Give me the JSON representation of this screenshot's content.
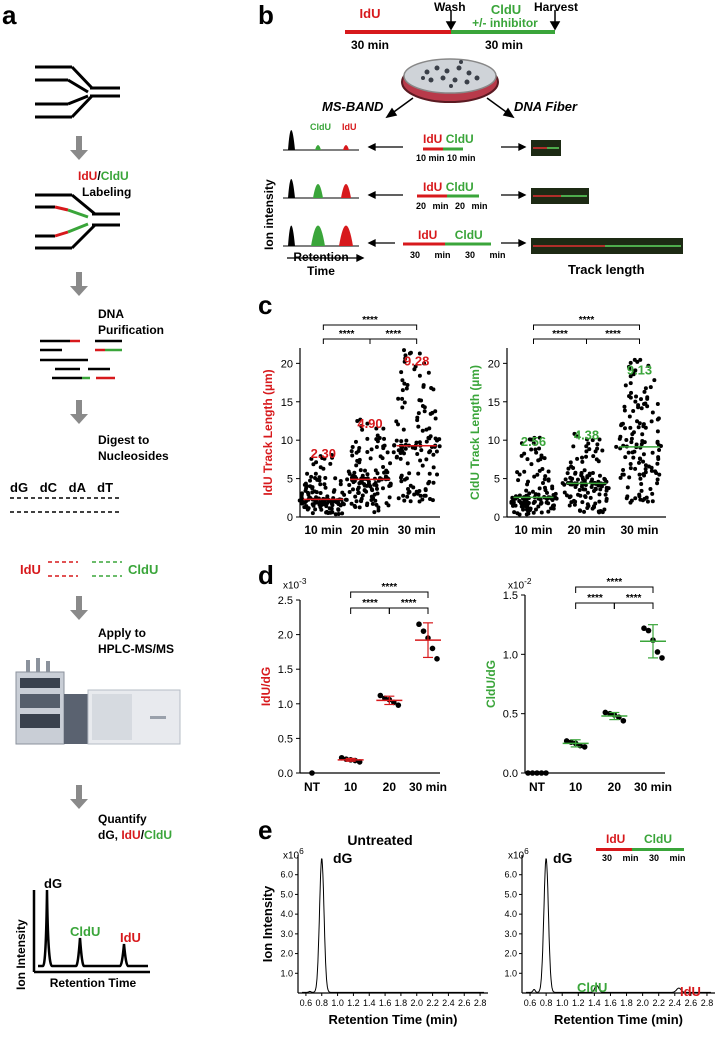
{
  "panels": {
    "a": "a",
    "b": "b",
    "c": "c",
    "d": "d",
    "e": "e"
  },
  "panel_a": {
    "step1_idu": "IdU",
    "step1_sep": "/",
    "step1_cldu": "CldU",
    "step1_rest": "Labeling",
    "step2_l1": "DNA",
    "step2_l2": "Purification",
    "step3_l1": "Digest to",
    "step3_l2": "Nucleosides",
    "nucleosides": [
      "dG",
      "dC",
      "dA",
      "dT"
    ],
    "idu_label": "IdU",
    "cldu_label": "CldU",
    "step4_l1": "Apply to",
    "step4_l2": "HPLC-MS/MS",
    "step5_l1": "Quantify",
    "step5_l2_a": "dG, ",
    "step5_l2_idu": "IdU",
    "step5_l2_sep": "/",
    "step5_l2_cldu": "CldU",
    "chrom_dg": "dG",
    "chrom_cldu": "CldU",
    "chrom_idu": "IdU",
    "chrom_ylabel": "Ion Intensity",
    "chrom_xlabel": "Retention Time"
  },
  "panel_b": {
    "idu": "IdU",
    "wash": "Wash",
    "cldu": "CldU",
    "inhibitor": "+/- inhibitor",
    "harvest": "Harvest",
    "t1": "30 min",
    "t2": "30 min",
    "msband": "MS-BAND",
    "fiber": "DNA Fiber",
    "ylabel": "Ion intensity",
    "xlabel_l1": "Retention",
    "xlabel_l2": "Time",
    "peak_cldu": "CldU",
    "peak_idu": "IdU",
    "rows": [
      {
        "idu": "IdU",
        "cldu": "CldU",
        "t1": "10 min",
        "t2": "10 min"
      },
      {
        "idu": "IdU",
        "cldu": "CldU",
        "t1": "20 min",
        "t2": "20 min"
      },
      {
        "idu": "IdU",
        "cldu": "CldU",
        "t1": "30 min",
        "t2": "30 min"
      }
    ],
    "track_length": "Track length"
  },
  "panel_d": {
    "left_exp": "x10",
    "left_exp_sup": "-3",
    "right_exp": "x10",
    "right_exp_sup": "-2"
  },
  "panel_e": {
    "left_title": "Untreated",
    "exp": "x10",
    "exp_sup": "6",
    "peak_dg": "dG",
    "peak_cldu": "CldU",
    "peak_idu": "IdU",
    "legend_idu": "IdU",
    "legend_cldu": "CldU",
    "legend_t1": "30 min",
    "legend_t2": "30 min"
  },
  "colors": {
    "idu": "#d7191c",
    "cldu": "#3aa53a",
    "black": "#000000",
    "arrow": "#8a8a8a"
  },
  "icons": [
    "fork-icon",
    "down-arrow-icon",
    "petri-dish-icon",
    "hplc-instrument-icon",
    "fiber-image-icon"
  ],
  "chart_data": [
    {
      "type": "scatter",
      "id": "c-left",
      "ylabel": "IdU Track Length (µm)",
      "categories": [
        "10 min",
        "20 min",
        "30 min"
      ],
      "medians": [
        2.3,
        4.9,
        9.28
      ],
      "median_labels": [
        "2.30",
        "4.90",
        "9.28"
      ],
      "ylim": [
        0,
        22
      ],
      "yticks": [
        0,
        5,
        10,
        15,
        20
      ],
      "significance": [
        {
          "from": 0,
          "to": 1,
          "label": "****"
        },
        {
          "from": 1,
          "to": 2,
          "label": "****"
        },
        {
          "from": 0,
          "to": 2,
          "label": "****"
        }
      ],
      "spread": [
        [
          0.3,
          8.5
        ],
        [
          0.5,
          12.8
        ],
        [
          1.5,
          22.0
        ]
      ]
    },
    {
      "type": "scatter",
      "id": "c-right",
      "ylabel": "CldU Track Length (µm)",
      "categories": [
        "10 min",
        "20 min",
        "30 min"
      ],
      "medians": [
        2.56,
        4.38,
        9.13
      ],
      "median_labels": [
        "2.56",
        "4.38",
        "9.13"
      ],
      "ylim": [
        0,
        22
      ],
      "yticks": [
        0,
        5,
        10,
        15,
        20
      ],
      "significance": [
        {
          "from": 0,
          "to": 1,
          "label": "****"
        },
        {
          "from": 1,
          "to": 2,
          "label": "****"
        },
        {
          "from": 0,
          "to": 2,
          "label": "****"
        }
      ],
      "spread": [
        [
          0.3,
          10.5
        ],
        [
          0.5,
          11.0
        ],
        [
          1.5,
          20.5
        ]
      ]
    },
    {
      "type": "scatter",
      "id": "d-left",
      "ylabel": "IdU/dG",
      "categories": [
        "NT",
        "10",
        "20",
        "30 min"
      ],
      "points": [
        [
          0.0
        ],
        [
          0.22,
          0.2,
          0.19,
          0.18,
          0.16
        ],
        [
          1.12,
          1.08,
          1.06,
          1.02,
          0.98
        ],
        [
          2.15,
          2.05,
          1.95,
          1.8,
          1.65
        ]
      ],
      "means": [
        0.0,
        0.19,
        1.05,
        1.92
      ],
      "errors": [
        0.0,
        0.02,
        0.06,
        0.25
      ],
      "ylim": [
        0,
        2.5
      ],
      "yticks": [
        0.0,
        0.5,
        1.0,
        1.5,
        2.0,
        2.5
      ],
      "ytick_labels": [
        "0.0",
        "0.5",
        "1.0",
        "1.5",
        "2.0",
        "2.5"
      ],
      "significance": [
        {
          "from": 1,
          "to": 2,
          "label": "****"
        },
        {
          "from": 2,
          "to": 3,
          "label": "****"
        },
        {
          "from": 1,
          "to": 3,
          "label": "****"
        }
      ]
    },
    {
      "type": "scatter",
      "id": "d-right",
      "ylabel": "CldU/dG",
      "categories": [
        "NT",
        "10",
        "20",
        "30 min"
      ],
      "points": [
        [
          0.0,
          0.0,
          0.0,
          0.0,
          0.0
        ],
        [
          0.27,
          0.26,
          0.25,
          0.23,
          0.22
        ],
        [
          0.51,
          0.5,
          0.49,
          0.47,
          0.44
        ],
        [
          1.22,
          1.2,
          1.12,
          1.02,
          0.97
        ]
      ],
      "means": [
        0.0,
        0.25,
        0.48,
        1.11
      ],
      "errors": [
        0.0,
        0.03,
        0.03,
        0.14
      ],
      "ylim": [
        0,
        1.5
      ],
      "yticks": [
        0.0,
        0.5,
        1.0,
        1.5
      ],
      "ytick_labels": [
        "0.0",
        "0.5",
        "1.0",
        "1.5"
      ],
      "significance": [
        {
          "from": 1,
          "to": 2,
          "label": "****"
        },
        {
          "from": 2,
          "to": 3,
          "label": "****"
        },
        {
          "from": 1,
          "to": 3,
          "label": "****"
        }
      ]
    },
    {
      "type": "line",
      "id": "e-left",
      "ylabel": "Ion Intensity",
      "xlabel": "Retention Time (min)",
      "xlim": [
        0.5,
        2.9
      ],
      "xticks": [
        0.6,
        0.8,
        1.0,
        1.2,
        1.4,
        1.6,
        1.8,
        2.0,
        2.2,
        2.4,
        2.6,
        2.8
      ],
      "xtick_labels": [
        "0.6",
        "0.8",
        "1.0",
        "1.2",
        "1.4",
        "1.6",
        "1.8",
        "2.0",
        "2.2",
        "2.4",
        "2.6",
        "2.8"
      ],
      "ylim": [
        0,
        7
      ],
      "yticks": [
        1.0,
        2.0,
        3.0,
        4.0,
        5.0,
        6.0
      ],
      "ytick_labels": [
        "1.0",
        "2.0",
        "3.0",
        "4.0",
        "5.0",
        "6.0"
      ],
      "peaks": [
        {
          "x": 0.65,
          "height": 0.05,
          "width": 0.02
        },
        {
          "x": 0.8,
          "height": 6.8,
          "width": 0.04
        }
      ]
    },
    {
      "type": "line",
      "id": "e-right",
      "ylabel": "",
      "xlabel": "Retention Time (min)",
      "xlim": [
        0.5,
        2.9
      ],
      "xticks": [
        0.6,
        0.8,
        1.0,
        1.2,
        1.4,
        1.6,
        1.8,
        2.0,
        2.2,
        2.4,
        2.6,
        2.8
      ],
      "xtick_labels": [
        "0.6",
        "0.8",
        "1.0",
        "1.2",
        "1.4",
        "1.6",
        "1.8",
        "2.0",
        "2.2",
        "2.4",
        "2.6",
        "2.8"
      ],
      "ylim": [
        0,
        7
      ],
      "yticks": [
        1.0,
        2.0,
        3.0,
        4.0,
        5.0,
        6.0
      ],
      "ytick_labels": [
        "1.0",
        "2.0",
        "3.0",
        "4.0",
        "5.0",
        "6.0"
      ],
      "peaks": [
        {
          "x": 0.65,
          "height": 0.15,
          "width": 0.02
        },
        {
          "x": 0.8,
          "height": 6.8,
          "width": 0.04
        },
        {
          "x": 1.43,
          "height": 0.35,
          "width": 0.035
        },
        {
          "x": 2.45,
          "height": 0.22,
          "width": 0.04
        }
      ]
    }
  ]
}
